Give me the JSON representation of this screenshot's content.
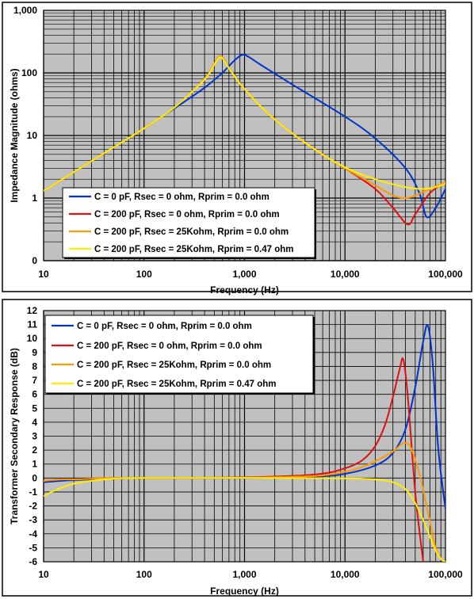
{
  "chart_data": [
    {
      "type": "line",
      "xlabel": "Frequency (Hz)",
      "ylabel": "Impedance Magnitude (ohms)",
      "xscale": "log",
      "yscale": "log",
      "xlim": [
        10,
        100000
      ],
      "ylim": [
        0.1,
        1000
      ],
      "xticks": [
        {
          "value": 10,
          "label": "10"
        },
        {
          "value": 100,
          "label": "100"
        },
        {
          "value": 1000,
          "label": "1,000"
        },
        {
          "value": 10000,
          "label": "10,000"
        },
        {
          "value": 100000,
          "label": "100,000"
        }
      ],
      "yticks": [
        {
          "value": 0.1,
          "label": "0"
        },
        {
          "value": 1,
          "label": "1"
        },
        {
          "value": 10,
          "label": "10"
        },
        {
          "value": 100,
          "label": "100"
        },
        {
          "value": 1000,
          "label": "1,000"
        }
      ],
      "grid": true,
      "legend_position": "bottom-left",
      "series": [
        {
          "name": "C = 0 pF, Rsec = 0 ohm, Rprim = 0.0 ohm",
          "color": "#0033cc",
          "x": [
            10,
            20,
            50,
            100,
            200,
            400,
            600,
            800,
            950,
            1100,
            1500,
            3000,
            10000,
            20000,
            40000,
            55000,
            65000,
            80000,
            100000
          ],
          "y": [
            1.3,
            2.6,
            6.5,
            13,
            27,
            58,
            100,
            160,
            195,
            180,
            130,
            65,
            20,
            9,
            3,
            1.2,
            0.5,
            0.7,
            1.4
          ]
        },
        {
          "name": "C = 200 pF, Rsec = 0 ohm, Rprim = 0.0 ohm",
          "color": "#dd1111",
          "x": [
            10,
            20,
            50,
            100,
            200,
            400,
            500,
            580,
            700,
            1000,
            2000,
            5000,
            10000,
            20000,
            30000,
            42000,
            50000,
            70000,
            100000
          ],
          "y": [
            1.3,
            2.6,
            6.5,
            13,
            28,
            80,
            140,
            185,
            120,
            55,
            18,
            6,
            3,
            1.4,
            0.7,
            0.38,
            0.55,
            1.2,
            1.8
          ]
        },
        {
          "name": "C = 200 pF, Rsec = 25Kohm, Rprim = 0.0 ohm",
          "color": "#ff9900",
          "x": [
            10,
            20,
            50,
            100,
            200,
            400,
            500,
            580,
            700,
            1000,
            2000,
            5000,
            10000,
            20000,
            30000,
            40000,
            50000,
            70000,
            100000
          ],
          "y": [
            1.3,
            2.6,
            6.5,
            13,
            28,
            80,
            140,
            185,
            120,
            55,
            18,
            6,
            3,
            1.6,
            1.1,
            1.0,
            1.1,
            1.4,
            1.8
          ]
        },
        {
          "name": "C = 200 pF, Rsec = 25Kohm, Rprim = 0.47 ohm",
          "color": "#ffee00",
          "x": [
            10,
            20,
            50,
            100,
            200,
            400,
            500,
            580,
            700,
            1000,
            2000,
            5000,
            10000,
            20000,
            40000,
            60000,
            80000,
            100000
          ],
          "y": [
            1.3,
            2.6,
            6.5,
            13,
            28,
            78,
            135,
            178,
            118,
            55,
            18,
            6,
            3.1,
            2.0,
            1.5,
            1.4,
            1.5,
            1.7
          ]
        }
      ]
    },
    {
      "type": "line",
      "xlabel": "Frequency (Hz)",
      "ylabel": "Transformer Secondary Response (dB)",
      "xscale": "log",
      "xlim": [
        10,
        100000
      ],
      "ylim": [
        -6,
        12
      ],
      "xticks": [
        {
          "value": 10,
          "label": "10"
        },
        {
          "value": 100,
          "label": "100"
        },
        {
          "value": 1000,
          "label": "1,000"
        },
        {
          "value": 10000,
          "label": "10,000"
        },
        {
          "value": 100000,
          "label": "100,000"
        }
      ],
      "yticks": [
        {
          "value": 12,
          "label": "12"
        },
        {
          "value": 11,
          "label": "11"
        },
        {
          "value": 10,
          "label": "10"
        },
        {
          "value": 9,
          "label": "9"
        },
        {
          "value": 8,
          "label": "8"
        },
        {
          "value": 7,
          "label": "7"
        },
        {
          "value": 6,
          "label": "6"
        },
        {
          "value": 5,
          "label": "5"
        },
        {
          "value": 4,
          "label": "4"
        },
        {
          "value": 3,
          "label": "3"
        },
        {
          "value": 2,
          "label": "2"
        },
        {
          "value": 1,
          "label": "1"
        },
        {
          "value": 0,
          "label": "0"
        },
        {
          "value": -1,
          "label": "-1"
        },
        {
          "value": -2,
          "label": "-2"
        },
        {
          "value": -3,
          "label": "-3"
        },
        {
          "value": -4,
          "label": "-4"
        },
        {
          "value": -5,
          "label": "-5"
        },
        {
          "value": -6,
          "label": "-6"
        }
      ],
      "grid": true,
      "legend_position": "top-left",
      "series": [
        {
          "name": "C = 0 pF, Rsec = 0 ohm, Rprim = 0.0 ohm",
          "color": "#0033cc",
          "x": [
            10,
            15,
            20,
            30,
            50,
            100,
            1000,
            5000,
            10000,
            20000,
            30000,
            40000,
            50000,
            60000,
            67000,
            75000,
            85000,
            100000
          ],
          "y": [
            -0.3,
            -0.2,
            -0.15,
            -0.1,
            -0.05,
            0,
            0,
            0.1,
            0.3,
            0.9,
            1.8,
            3.5,
            6.5,
            9.8,
            10.9,
            8.0,
            2.0,
            -2.2
          ]
        },
        {
          "name": "C = 200 pF, Rsec = 0 ohm, Rprim = 0.0 ohm",
          "color": "#dd1111",
          "x": [
            10,
            15,
            20,
            30,
            50,
            100,
            1000,
            5000,
            10000,
            15000,
            20000,
            25000,
            30000,
            35000,
            38000,
            42000,
            50000,
            60000
          ],
          "y": [
            -0.2,
            -0.1,
            -0.1,
            -0.05,
            0,
            0,
            0.05,
            0.25,
            0.7,
            1.3,
            2.3,
            3.8,
            5.8,
            7.8,
            8.5,
            6.0,
            -1.0,
            -6
          ]
        },
        {
          "name": "C = 200 pF, Rsec = 25Kohm, Rprim = 0.0 ohm",
          "color": "#ff9900",
          "x": [
            10,
            15,
            20,
            30,
            50,
            100,
            1000,
            5000,
            10000,
            15000,
            20000,
            30000,
            38000,
            45000,
            55000,
            65000,
            80000,
            95000
          ],
          "y": [
            -0.2,
            -0.1,
            -0.1,
            -0.05,
            0,
            0,
            0.02,
            0.15,
            0.45,
            0.8,
            1.2,
            1.9,
            2.5,
            2.2,
            0.3,
            -2.0,
            -5.0,
            -6
          ]
        },
        {
          "name": "C = 200 pF, Rsec = 25Kohm, Rprim = 0.47 ohm",
          "color": "#ffee00",
          "x": [
            10,
            12,
            15,
            20,
            30,
            50,
            100,
            1000,
            10000,
            20000,
            30000,
            40000,
            50000,
            60000,
            70000,
            80000,
            90000,
            100000
          ],
          "y": [
            -1.3,
            -1.0,
            -0.7,
            -0.4,
            -0.2,
            -0.05,
            0,
            0,
            -0.02,
            -0.1,
            -0.3,
            -0.8,
            -1.8,
            -3.0,
            -4.2,
            -5.2,
            -5.8,
            -6
          ]
        }
      ]
    }
  ]
}
